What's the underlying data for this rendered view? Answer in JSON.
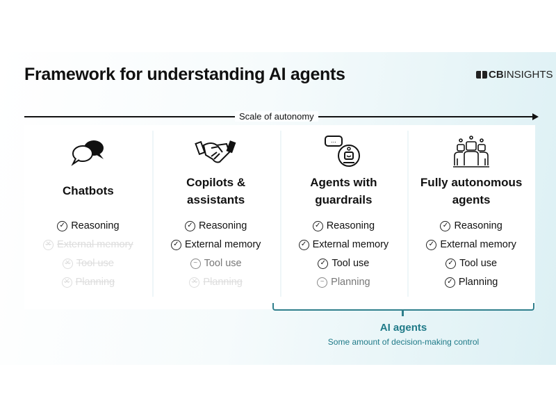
{
  "title": "Framework for understanding AI agents",
  "logo": {
    "bold": "CB",
    "light": "INSIGHTS"
  },
  "axis_label": "Scale of autonomy",
  "legend_status": {
    "yes": "check-circle",
    "partial": "tilde-circle",
    "no": "x-circle"
  },
  "columns": [
    {
      "name": "Chatbots",
      "icon": "chat-bubbles-icon",
      "features": [
        {
          "label": "Reasoning",
          "status": "yes"
        },
        {
          "label": "External memory",
          "status": "no"
        },
        {
          "label": "Tool use",
          "status": "no"
        },
        {
          "label": "Planning",
          "status": "no"
        }
      ]
    },
    {
      "name": "Copilots & assistants",
      "icon": "handshake-icon",
      "features": [
        {
          "label": "Reasoning",
          "status": "yes"
        },
        {
          "label": "External memory",
          "status": "yes"
        },
        {
          "label": "Tool use",
          "status": "partial"
        },
        {
          "label": "Planning",
          "status": "no"
        }
      ]
    },
    {
      "name": "Agents with guardrails",
      "icon": "robot-chat-icon",
      "features": [
        {
          "label": "Reasoning",
          "status": "yes"
        },
        {
          "label": "External memory",
          "status": "yes"
        },
        {
          "label": "Tool use",
          "status": "yes"
        },
        {
          "label": "Planning",
          "status": "partial"
        }
      ]
    },
    {
      "name": "Fully autonomous agents",
      "icon": "robot-group-icon",
      "features": [
        {
          "label": "Reasoning",
          "status": "yes"
        },
        {
          "label": "External memory",
          "status": "yes"
        },
        {
          "label": "Tool use",
          "status": "yes"
        },
        {
          "label": "Planning",
          "status": "yes"
        }
      ]
    }
  ],
  "group": {
    "title": "AI agents",
    "subtitle": "Some amount of decision-making control"
  },
  "colors": {
    "accent": "#1f7a88"
  }
}
